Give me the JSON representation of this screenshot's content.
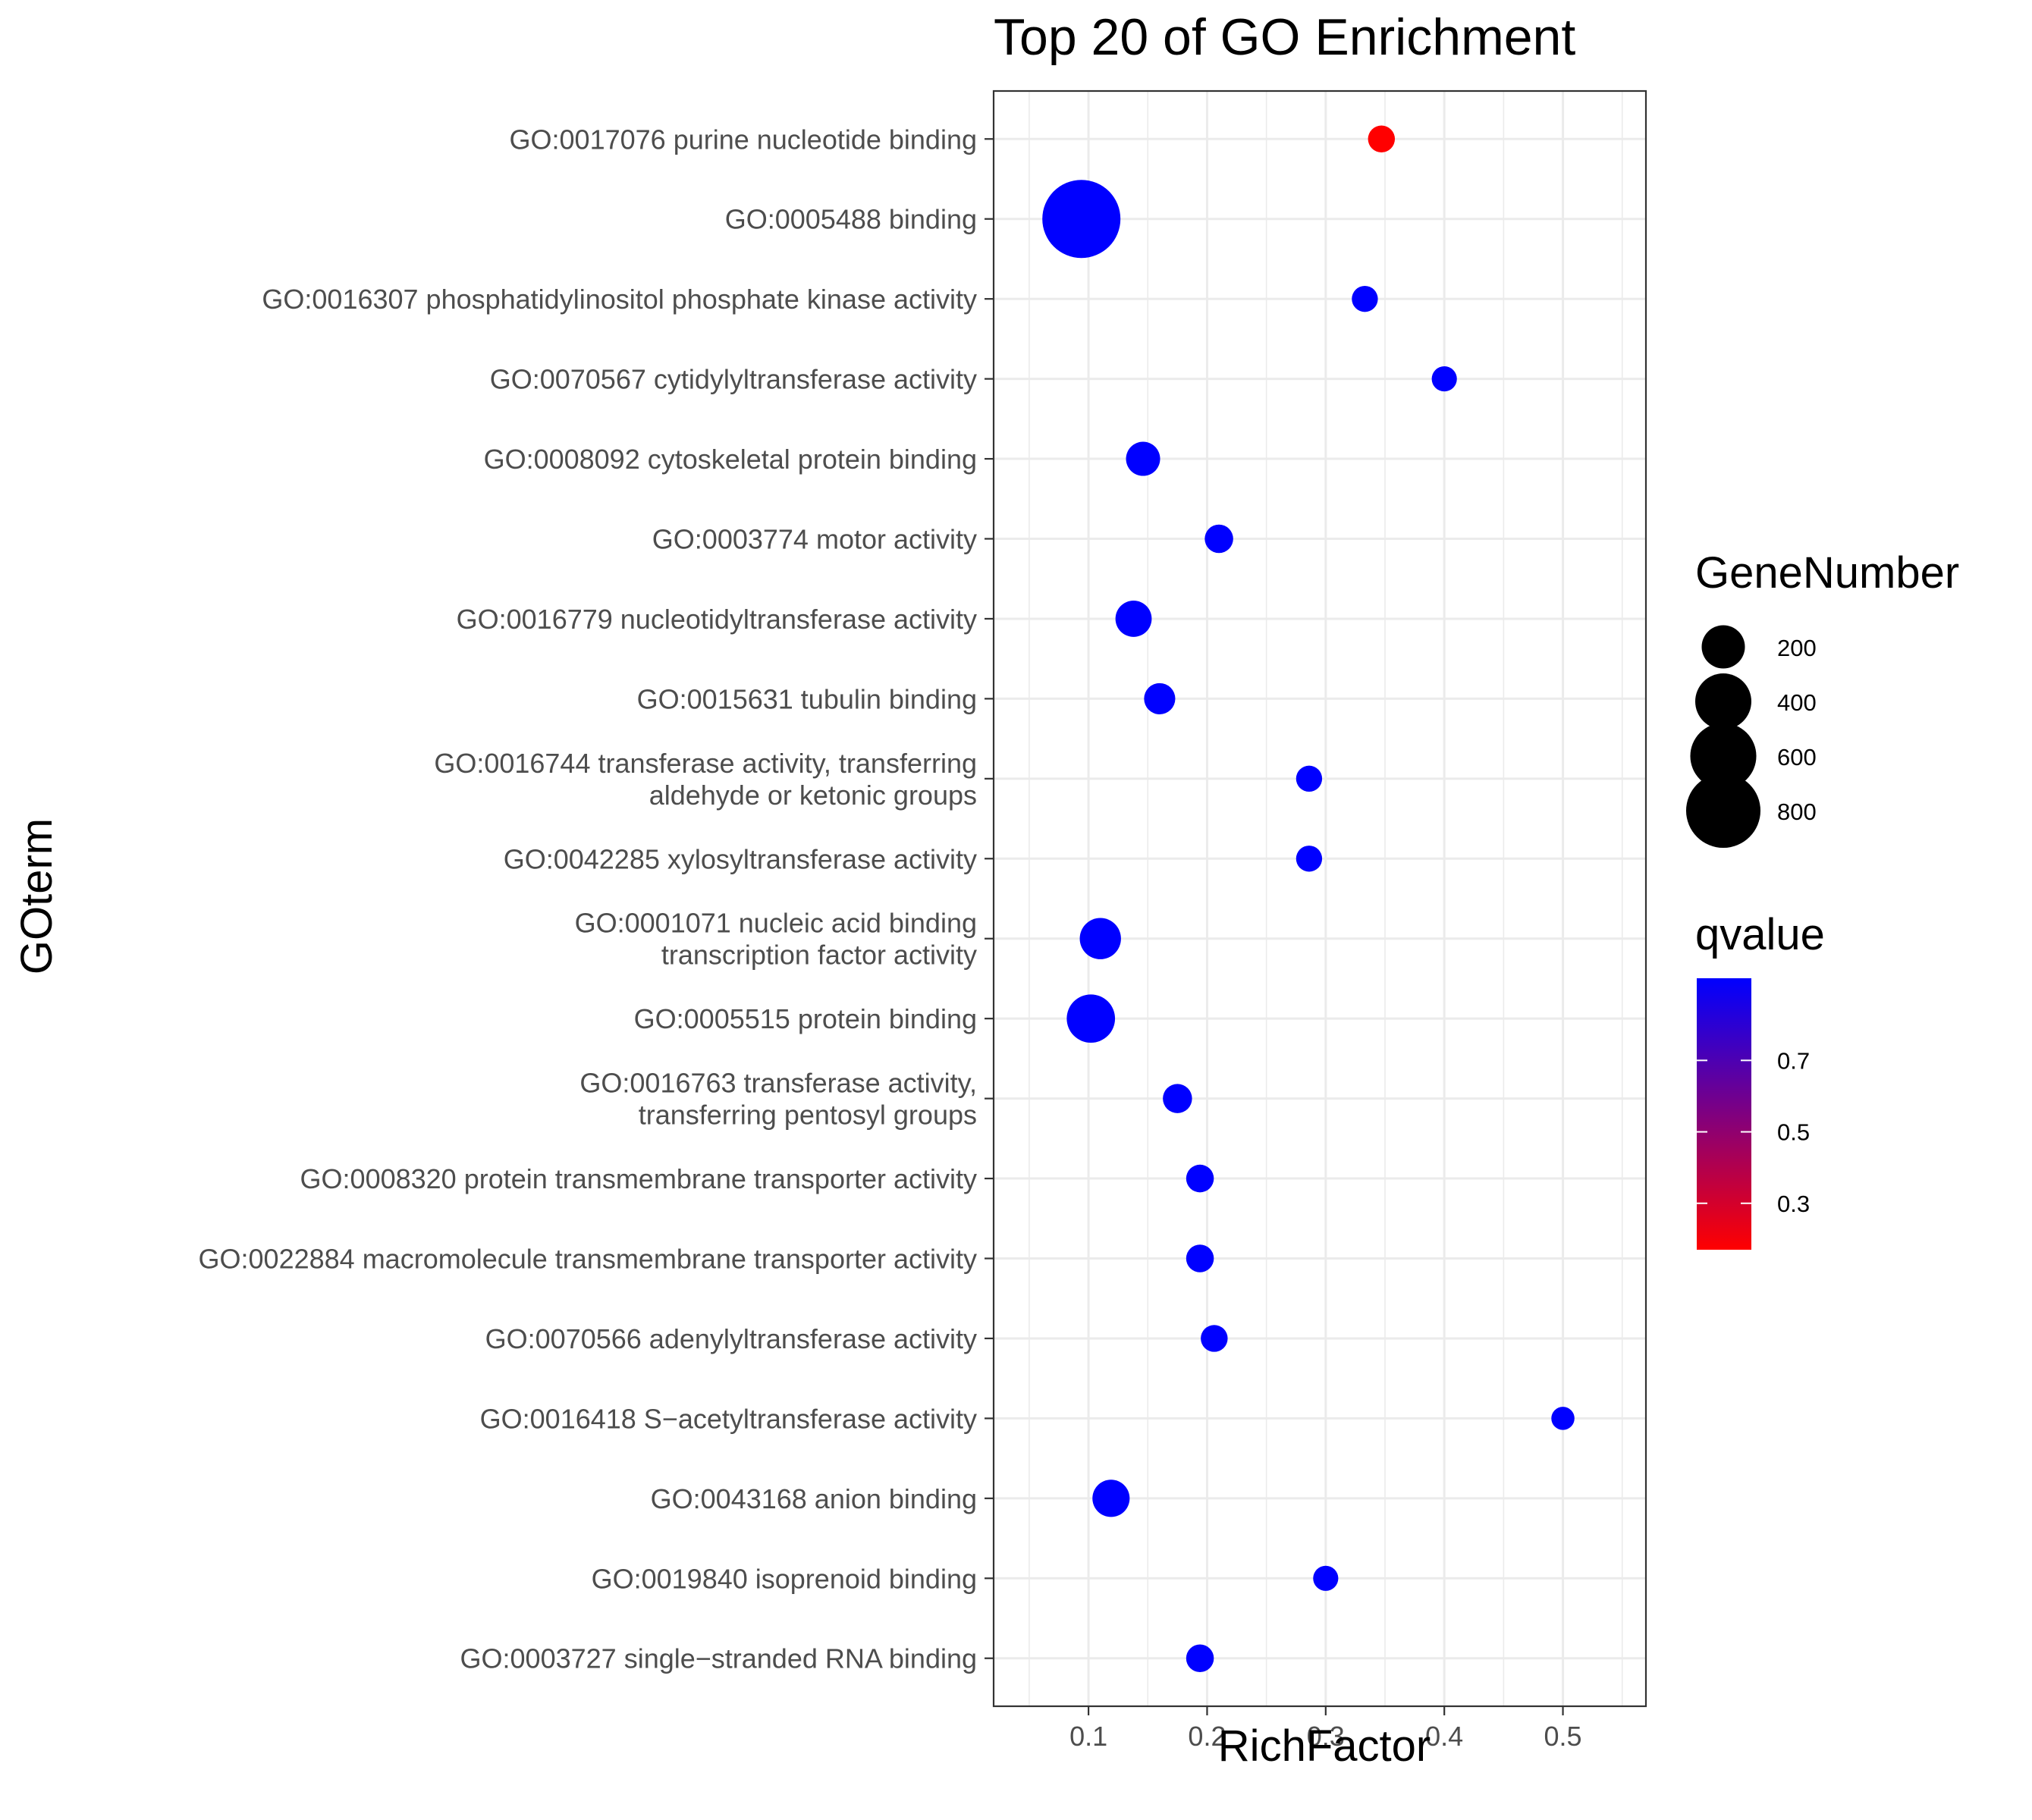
{
  "chart_data": {
    "type": "scatter",
    "title": "Top 20 of GO Enrichment",
    "xlabel": "RichFactor",
    "ylabel": "GOterm",
    "xlim": [
      0.02,
      0.57
    ],
    "xticks": [
      "0.1",
      "0.2",
      "0.3",
      "0.4",
      "0.5"
    ],
    "grid": true,
    "size_legend": {
      "title": "GeneNumber",
      "values": [
        200,
        400,
        600,
        800
      ],
      "labels": [
        "200",
        "400",
        "600",
        "800"
      ]
    },
    "color_legend": {
      "title": "qvalue",
      "range": [
        0.17,
        0.93
      ],
      "ticks": [
        "0.7",
        "0.5",
        "0.3"
      ],
      "low_color": "#ff0000",
      "high_color": "#0000ff"
    },
    "points": [
      {
        "term": [
          "GO:0017076 purine nucleotide binding"
        ],
        "richfactor": 0.347,
        "genenumber": 45,
        "qvalue": 0.17
      },
      {
        "term": [
          "GO:0005488 binding"
        ],
        "richfactor": 0.094,
        "genenumber": 900,
        "qvalue": 0.93
      },
      {
        "term": [
          "GO:0016307 phosphatidylinositol phosphate kinase activity"
        ],
        "richfactor": 0.333,
        "genenumber": 40,
        "qvalue": 0.93
      },
      {
        "term": [
          "GO:0070567 cytidylyltransferase activity"
        ],
        "richfactor": 0.4,
        "genenumber": 35,
        "qvalue": 0.93
      },
      {
        "term": [
          "GO:0008092 cytoskeletal protein binding"
        ],
        "richfactor": 0.146,
        "genenumber": 100,
        "qvalue": 0.93
      },
      {
        "term": [
          "GO:0003774 motor activity"
        ],
        "richfactor": 0.21,
        "genenumber": 55,
        "qvalue": 0.93
      },
      {
        "term": [
          "GO:0016779 nucleotidyltransferase activity"
        ],
        "richfactor": 0.138,
        "genenumber": 120,
        "qvalue": 0.93
      },
      {
        "term": [
          "GO:0015631 tubulin binding"
        ],
        "richfactor": 0.16,
        "genenumber": 75,
        "qvalue": 0.93
      },
      {
        "term": [
          "GO:0016744 transferase activity, transferring",
          "aldehyde or ketonic groups"
        ],
        "richfactor": 0.286,
        "genenumber": 40,
        "qvalue": 0.93
      },
      {
        "term": [
          "GO:0042285 xylosyltransferase activity"
        ],
        "richfactor": 0.286,
        "genenumber": 40,
        "qvalue": 0.93
      },
      {
        "term": [
          "GO:0001071 nucleic acid binding",
          "transcription factor activity"
        ],
        "richfactor": 0.11,
        "genenumber": 175,
        "qvalue": 0.93
      },
      {
        "term": [
          "GO:0005515 protein binding"
        ],
        "richfactor": 0.102,
        "genenumber": 270,
        "qvalue": 0.93
      },
      {
        "term": [
          "GO:0016763 transferase activity,",
          "transferring pentosyl groups"
        ],
        "richfactor": 0.175,
        "genenumber": 60,
        "qvalue": 0.93
      },
      {
        "term": [
          "GO:0008320 protein transmembrane transporter activity"
        ],
        "richfactor": 0.194,
        "genenumber": 50,
        "qvalue": 0.93
      },
      {
        "term": [
          "GO:0022884 macromolecule transmembrane transporter activity"
        ],
        "richfactor": 0.194,
        "genenumber": 50,
        "qvalue": 0.93
      },
      {
        "term": [
          "GO:0070566 adenylyltransferase activity"
        ],
        "richfactor": 0.206,
        "genenumber": 45,
        "qvalue": 0.93
      },
      {
        "term": [
          "GO:0016418 S−acetyltransferase activity"
        ],
        "richfactor": 0.5,
        "genenumber": 25,
        "qvalue": 0.93
      },
      {
        "term": [
          "GO:0043168 anion binding"
        ],
        "richfactor": 0.119,
        "genenumber": 130,
        "qvalue": 0.93
      },
      {
        "term": [
          "GO:0019840 isoprenoid binding"
        ],
        "richfactor": 0.3,
        "genenumber": 35,
        "qvalue": 0.93
      },
      {
        "term": [
          "GO:0003727 single−stranded RNA binding"
        ],
        "richfactor": 0.194,
        "genenumber": 50,
        "qvalue": 0.93
      }
    ]
  }
}
